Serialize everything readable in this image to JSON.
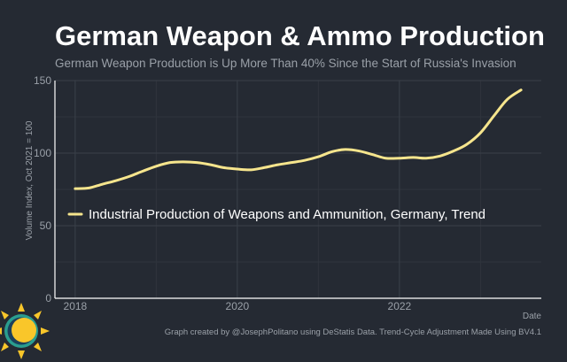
{
  "chart_data": {
    "type": "line",
    "title": "German Weapon & Ammo Production",
    "subtitle": "German Weapon Production is Up More Than 40% Since the Start of Russia's Invasion",
    "xlabel": "Date",
    "ylabel": "Volume Index, Oct 2021 = 100",
    "xlim": [
      2017.75,
      2023.75
    ],
    "ylim": [
      0,
      150
    ],
    "x_ticks": [
      2018,
      2020,
      2022
    ],
    "x_tick_labels": [
      "2018",
      "2020",
      "2022"
    ],
    "y_ticks": [
      0,
      50,
      100,
      150
    ],
    "y_tick_labels": [
      "0",
      "50",
      "100",
      "150"
    ],
    "grid": true,
    "legend_position": "middle-left",
    "series": [
      {
        "name": "Industrial Production of Weapons and Ammunition, Germany, Trend",
        "color": "#f6e58d",
        "x": [
          2018.0,
          2018.17,
          2018.33,
          2018.5,
          2018.67,
          2018.83,
          2019.0,
          2019.17,
          2019.33,
          2019.5,
          2019.67,
          2019.83,
          2020.0,
          2020.17,
          2020.33,
          2020.5,
          2020.67,
          2020.83,
          2021.0,
          2021.17,
          2021.33,
          2021.5,
          2021.67,
          2021.83,
          2022.0,
          2022.17,
          2022.33,
          2022.5,
          2022.67,
          2022.83,
          2023.0,
          2023.17,
          2023.33,
          2023.5
        ],
        "values": [
          75.5,
          76,
          78.5,
          81,
          84,
          87.5,
          91,
          93.5,
          94,
          93.5,
          92,
          90,
          89,
          88.5,
          90,
          92,
          93.5,
          95,
          97.5,
          101,
          102.5,
          101.5,
          99,
          96.5,
          96.5,
          97,
          96.5,
          98,
          101.5,
          106,
          114,
          126,
          137,
          143.5
        ]
      }
    ]
  },
  "caption": "Graph created by @JosephPolitano using DeStatis Data. Trend-Cycle Adjustment Made Using BV4.1",
  "logo": {
    "name": "sun-logo",
    "colors": [
      "#f9c62a",
      "#2a9d8f",
      "#1b3f5c"
    ]
  }
}
